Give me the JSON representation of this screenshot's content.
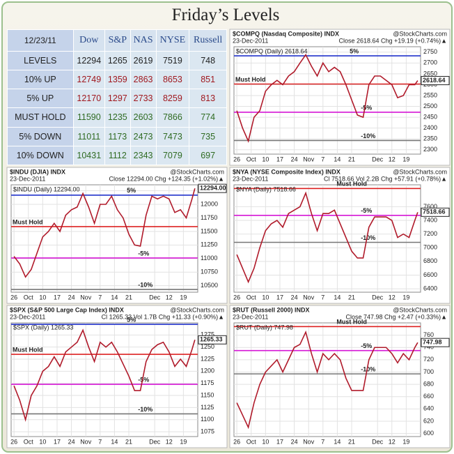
{
  "title": "Friday’s Levels",
  "table": {
    "header": [
      "12/23/11",
      "Dow",
      "S&P",
      "NAS",
      "NYSE",
      "Russell"
    ],
    "rows": [
      [
        "LEVELS",
        "12294",
        "1265",
        "2619",
        "7519",
        "748"
      ],
      [
        "10% UP",
        "12749",
        "1359",
        "2863",
        "8653",
        "851"
      ],
      [
        "5% UP",
        "12170",
        "1297",
        "2733",
        "8259",
        "813"
      ],
      [
        "MUST HOLD",
        "11590",
        "1235",
        "2603",
        "7866",
        "774"
      ],
      [
        "5% DOWN",
        "11011",
        "1173",
        "2473",
        "7473",
        "735"
      ],
      [
        "10% DOWN",
        "10431",
        "1112",
        "2343",
        "7079",
        "697"
      ]
    ],
    "row_colors": [
      "#222222",
      "#a0181e",
      "#a0181e",
      "#2f6b22",
      "#2f6b22",
      "#2f6b22"
    ]
  },
  "chart_data": [
    {
      "type": "line",
      "title": "$COMPQ (Nasdaq Composite) INDX",
      "source": "@StockCharts.com",
      "date": "23-Dec-2011",
      "quote": "Close 2618.64  Chg +19.19 (+0.74%)▲",
      "legend": "$COMPQ (Daily) 2618.64",
      "last_label": "2618.64",
      "color": "#b01a2a",
      "x": [
        0,
        2,
        4,
        6,
        8,
        10,
        12,
        14,
        16,
        18,
        20,
        22,
        24,
        26,
        28,
        30,
        32,
        34,
        36,
        38,
        40,
        42,
        44,
        46,
        48,
        50,
        52,
        54,
        56,
        58,
        60,
        62,
        63
      ],
      "values": [
        2480,
        2400,
        2340,
        2450,
        2480,
        2570,
        2600,
        2620,
        2600,
        2640,
        2660,
        2700,
        2738,
        2685,
        2640,
        2700,
        2660,
        2680,
        2660,
        2600,
        2530,
        2460,
        2450,
        2600,
        2640,
        2640,
        2620,
        2600,
        2540,
        2550,
        2600,
        2600,
        2619
      ],
      "xlim": [
        -1,
        64
      ],
      "xticks": [
        {
          "value": 0,
          "label": "26"
        },
        {
          "value": 5,
          "label": "Oct"
        },
        10,
        {
          "value": 15,
          "label": "17"
        },
        {
          "value": 20,
          "label": "24"
        },
        {
          "value": 25,
          "label": "Nov"
        },
        {
          "value": 30,
          "label": "7"
        },
        {
          "value": 35,
          "label": "14"
        },
        {
          "value": 40,
          "label": "21"
        },
        {
          "value": 49,
          "label": "Dec"
        },
        {
          "value": 54,
          "label": "12"
        },
        {
          "value": 59,
          "label": "19"
        }
      ],
      "ylim": [
        2280,
        2775
      ],
      "yticks": [
        2300,
        2350,
        2400,
        2450,
        2500,
        2550,
        2600,
        2650,
        2700,
        2750
      ],
      "grid": true,
      "levels": [
        {
          "label": "5%",
          "value": 2733,
          "color": "#2233cc"
        },
        {
          "label": "Must Hold",
          "value": 2603,
          "color": "#dd2222"
        },
        {
          "label": "-5%",
          "value": 2473,
          "color": "#d516d5"
        },
        {
          "label": "-10%",
          "value": 2343,
          "color": "#777777"
        }
      ]
    },
    {
      "type": "line",
      "title": "$INDU (DJIA) INDX",
      "source": "@StockCharts.com",
      "date": "23-Dec-2011",
      "quote": "Close 12294.00  Chg +124.35 (+1.02%)▲",
      "legend": "$INDU (Daily) 12294.00",
      "last_label": "12294.00",
      "color": "#b01a2a",
      "x": [
        0,
        2,
        4,
        6,
        8,
        10,
        12,
        14,
        16,
        18,
        20,
        22,
        24,
        26,
        28,
        30,
        32,
        34,
        36,
        38,
        40,
        42,
        44,
        46,
        48,
        50,
        52,
        54,
        56,
        58,
        60,
        62,
        63
      ],
      "values": [
        11040,
        10900,
        10660,
        10800,
        11100,
        11400,
        11500,
        11650,
        11500,
        11800,
        11900,
        11950,
        12200,
        11950,
        11650,
        12000,
        12000,
        12150,
        11900,
        11750,
        11450,
        11250,
        11230,
        11800,
        12150,
        12100,
        12150,
        12100,
        11850,
        11900,
        11750,
        12100,
        12294
      ],
      "xlim": [
        -1,
        64
      ],
      "xticks": [
        {
          "value": 0,
          "label": "26"
        },
        {
          "value": 5,
          "label": "Oct"
        },
        10,
        {
          "value": 15,
          "label": "17"
        },
        {
          "value": 20,
          "label": "24"
        },
        {
          "value": 25,
          "label": "Nov"
        },
        {
          "value": 30,
          "label": "7"
        },
        {
          "value": 35,
          "label": "14"
        },
        {
          "value": 40,
          "label": "21"
        },
        {
          "value": 49,
          "label": "Dec"
        },
        {
          "value": 54,
          "label": "12"
        },
        {
          "value": 59,
          "label": "19"
        }
      ],
      "ylim": [
        10380,
        12360
      ],
      "yticks": [
        10500,
        10750,
        11000,
        11250,
        11500,
        11750,
        12000,
        12250
      ],
      "grid": true,
      "levels": [
        {
          "label": "5%",
          "value": 12170,
          "color": "#2233cc"
        },
        {
          "label": "Must Hold",
          "value": 11590,
          "color": "#dd2222"
        },
        {
          "label": "-5%",
          "value": 11011,
          "color": "#d516d5"
        },
        {
          "label": "-10%",
          "value": 10431,
          "color": "#777777"
        }
      ]
    },
    {
      "type": "line",
      "title": "$NYA (NYSE Composite Index) INDX",
      "source": "@StockCharts.com",
      "date": "23-Dec-2011",
      "quote": "Cl 7518.66  Vol 2.2B  Chg +57.91 (+0.78%)▲",
      "legend": "$NYA (Daily) 7518.66",
      "last_label": "7518.66",
      "color": "#b01a2a",
      "x": [
        0,
        2,
        4,
        6,
        8,
        10,
        12,
        14,
        16,
        18,
        20,
        22,
        24,
        26,
        28,
        30,
        32,
        34,
        36,
        38,
        40,
        42,
        44,
        46,
        48,
        50,
        52,
        54,
        56,
        58,
        60,
        62,
        63
      ],
      "values": [
        6900,
        6700,
        6500,
        6700,
        7000,
        7250,
        7350,
        7400,
        7300,
        7500,
        7550,
        7600,
        7800,
        7500,
        7250,
        7500,
        7500,
        7550,
        7350,
        7150,
        6950,
        6850,
        6850,
        7300,
        7450,
        7450,
        7450,
        7400,
        7150,
        7200,
        7150,
        7400,
        7519
      ],
      "xlim": [
        -1,
        64
      ],
      "xticks": [
        {
          "value": 0,
          "label": "26"
        },
        {
          "value": 5,
          "label": "Oct"
        },
        10,
        {
          "value": 15,
          "label": "17"
        },
        {
          "value": 20,
          "label": "24"
        },
        {
          "value": 25,
          "label": "Nov"
        },
        {
          "value": 30,
          "label": "7"
        },
        {
          "value": 35,
          "label": "14"
        },
        {
          "value": 40,
          "label": "21"
        },
        {
          "value": 49,
          "label": "Dec"
        },
        {
          "value": 54,
          "label": "12"
        },
        {
          "value": 59,
          "label": "19"
        }
      ],
      "ylim": [
        6350,
        7920
      ],
      "yticks": [
        6400,
        6600,
        6800,
        7000,
        7200,
        7400,
        7600
      ],
      "grid": true,
      "levels": [
        {
          "label": "Must Hold",
          "value": 7866,
          "color": "#dd2222"
        },
        {
          "label": "-5%",
          "value": 7473,
          "color": "#d516d5"
        },
        {
          "label": "-10%",
          "value": 7079,
          "color": "#777777"
        }
      ]
    },
    {
      "type": "line",
      "title": "$SPX (S&P 500 Large Cap Index) INDX",
      "source": "@StockCharts.com",
      "date": "23-Dec-2011",
      "quote": "Cl 1265.33  Vol 1.7B  Chg +11.33 (+0.90%)▲",
      "legend": "$SPX (Daily) 1265.33",
      "last_label": "1265.33",
      "color": "#b01a2a",
      "x": [
        0,
        2,
        4,
        6,
        8,
        10,
        12,
        14,
        16,
        18,
        20,
        22,
        24,
        26,
        28,
        30,
        32,
        34,
        36,
        38,
        40,
        42,
        44,
        46,
        48,
        50,
        52,
        54,
        56,
        58,
        60,
        62,
        63
      ],
      "values": [
        1170,
        1140,
        1100,
        1150,
        1170,
        1200,
        1210,
        1230,
        1210,
        1240,
        1250,
        1260,
        1285,
        1250,
        1220,
        1260,
        1250,
        1260,
        1240,
        1215,
        1190,
        1160,
        1160,
        1220,
        1245,
        1255,
        1260,
        1240,
        1210,
        1225,
        1210,
        1245,
        1265
      ],
      "xlim": [
        -1,
        64
      ],
      "xticks": [
        {
          "value": 0,
          "label": "26"
        },
        {
          "value": 5,
          "label": "Oct"
        },
        10,
        {
          "value": 15,
          "label": "17"
        },
        {
          "value": 20,
          "label": "24"
        },
        {
          "value": 25,
          "label": "Nov"
        },
        {
          "value": 30,
          "label": "7"
        },
        {
          "value": 35,
          "label": "14"
        },
        {
          "value": 40,
          "label": "21"
        },
        {
          "value": 49,
          "label": "Dec"
        },
        {
          "value": 54,
          "label": "12"
        },
        {
          "value": 59,
          "label": "19"
        }
      ],
      "ylim": [
        1065,
        1300
      ],
      "yticks": [
        1075,
        1100,
        1125,
        1150,
        1175,
        1200,
        1225,
        1250,
        1275
      ],
      "grid": true,
      "levels": [
        {
          "label": "5%",
          "value": 1297,
          "color": "#2233cc"
        },
        {
          "label": "Must Hold",
          "value": 1235,
          "color": "#dd2222"
        },
        {
          "label": "-5%",
          "value": 1173,
          "color": "#d516d5"
        },
        {
          "label": "-10%",
          "value": 1112,
          "color": "#777777"
        }
      ]
    },
    {
      "type": "line",
      "title": "$RUT (Russell 2000) INDX",
      "source": "@StockCharts.com",
      "date": "23-Dec-2011",
      "quote": "Close 747.98  Chg +2.47 (+0.33%)▲",
      "legend": "$RUT (Daily) 747.98",
      "last_label": "747.98",
      "color": "#b01a2a",
      "x": [
        0,
        2,
        4,
        6,
        8,
        10,
        12,
        14,
        16,
        18,
        20,
        22,
        24,
        26,
        28,
        30,
        32,
        34,
        36,
        38,
        40,
        42,
        44,
        46,
        48,
        50,
        52,
        54,
        56,
        58,
        60,
        62,
        63
      ],
      "values": [
        650,
        630,
        610,
        650,
        680,
        700,
        710,
        720,
        700,
        720,
        740,
        745,
        765,
        730,
        700,
        730,
        720,
        730,
        720,
        690,
        670,
        670,
        670,
        720,
        740,
        740,
        740,
        730,
        715,
        730,
        720,
        740,
        748
      ],
      "xlim": [
        -1,
        64
      ],
      "xticks": [
        {
          "value": 0,
          "label": "26"
        },
        {
          "value": 5,
          "label": "Oct"
        },
        10,
        {
          "value": 15,
          "label": "17"
        },
        {
          "value": 20,
          "label": "24"
        },
        {
          "value": 25,
          "label": "Nov"
        },
        {
          "value": 30,
          "label": "7"
        },
        {
          "value": 35,
          "label": "14"
        },
        {
          "value": 40,
          "label": "21"
        },
        {
          "value": 49,
          "label": "Dec"
        },
        {
          "value": 54,
          "label": "12"
        },
        {
          "value": 59,
          "label": "19"
        }
      ],
      "ylim": [
        595,
        780
      ],
      "yticks": [
        600,
        620,
        640,
        660,
        680,
        700,
        720,
        740,
        760
      ],
      "grid": true,
      "levels": [
        {
          "label": "Must Hold",
          "value": 774,
          "color": "#dd2222"
        },
        {
          "label": "-5%",
          "value": 735,
          "color": "#d516d5"
        },
        {
          "label": "-10%",
          "value": 697,
          "color": "#777777"
        }
      ]
    }
  ]
}
